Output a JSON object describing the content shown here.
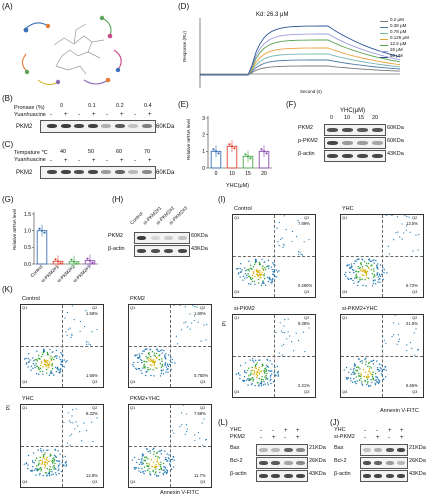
{
  "panels": {
    "A": "(A)",
    "B": "(B)",
    "C": "(C)",
    "D": "(D)",
    "E": "(E)",
    "F": "(F)",
    "G": "(G)",
    "H": "(H)",
    "I": "(I)",
    "J": "(J)",
    "K": "(K)",
    "L": "(L)"
  },
  "B": {
    "row1": "Pronase (%)",
    "row2": "Yuanhuacine",
    "pronase": [
      "0",
      "0.1",
      "0.2",
      "0.4"
    ],
    "signs": [
      "-",
      "+",
      "-",
      "+",
      "-",
      "+",
      "-",
      "+"
    ],
    "protein": "PKM2",
    "kda": "60KDa"
  },
  "C": {
    "row1": "Tempature ℃",
    "row2": "Yuanhuacine",
    "temps": [
      "40",
      "50",
      "60",
      "70"
    ],
    "signs": [
      "-",
      "+",
      "-",
      "+",
      "-",
      "+",
      "-",
      "+"
    ],
    "protein": "PKM2",
    "kda": "60KDa"
  },
  "D": {
    "kd": "Kd: 26.3 μM",
    "ylabel": "Response (RU)",
    "xlabel": "Second (s)",
    "legend": [
      "0.2 μM",
      "0.39 μM",
      "0.78 μM",
      "0.125 μM",
      "12.5 μM",
      "25 μM",
      "50 μM"
    ],
    "colors": [
      "#7a7a7a",
      "#4e79a7",
      "#76b7b2",
      "#e8a33d",
      "#59a14f",
      "#9c9ede",
      "#2f5597"
    ]
  },
  "E": {
    "ylabel": "Relative mRNA level",
    "xlabel": "YHC(μM)",
    "ticks": [
      "0",
      "10",
      "15",
      "20"
    ],
    "yticks": [
      "0",
      "1",
      "2",
      "3"
    ]
  },
  "F": {
    "header": "YHC(μM)",
    "conc": [
      "0",
      "10",
      "15",
      "20"
    ],
    "proteins": [
      "PKM2",
      "p-PKM2",
      "β-actin"
    ],
    "kda": [
      "60KDa",
      "60KDa",
      "43KDa"
    ]
  },
  "G": {
    "ylabel": "Relative mRNA level",
    "yticks": [
      "0.0",
      "0.5",
      "1.0",
      "1.5"
    ],
    "cats": [
      "Control",
      "si-PKM2#1",
      "si-PKM2#2",
      "si-PKM2#3"
    ]
  },
  "H": {
    "cols": [
      "Control",
      "si-PKM2#1",
      "si-PKM2#2",
      "si-PKM2#3"
    ],
    "proteins": [
      "PKM2",
      "β-actin"
    ],
    "kda": [
      "60KDa",
      "43KDa"
    ]
  },
  "I": {
    "titles": [
      "Control",
      "YHC",
      "si-PKM2",
      "si-PKM2+YHC"
    ],
    "pi": "PI",
    "annexin": "Annexin V-FITC",
    "q": [
      [
        "7.89%",
        "0.290%"
      ],
      [
        "13.5%",
        "5.72%"
      ],
      [
        "9.38%",
        "2.21%"
      ],
      [
        "21.8%",
        "6.66%"
      ]
    ]
  },
  "K": {
    "titles": [
      "Control",
      "PKM2",
      "YHC",
      "PKM2+YHC"
    ],
    "pi": "PI",
    "annexin": "Annexin V-FITC",
    "q": [
      [
        "1.59%",
        "1.65%"
      ],
      [
        "1.80%",
        "0.750%"
      ],
      [
        "8.32%",
        "12.8%"
      ],
      [
        "7.68%",
        "11.7%"
      ]
    ]
  },
  "L": {
    "rows": [
      "YHC",
      "PKM2"
    ],
    "signs": [
      [
        "-",
        "-",
        "+",
        "+"
      ],
      [
        "-",
        "+",
        "-",
        "+"
      ]
    ],
    "proteins": [
      "Bax",
      "Bcl-2",
      "β-actin"
    ],
    "kda": [
      "21KDa",
      "26KDa",
      "43KDa"
    ]
  },
  "J": {
    "rows": [
      "YHC",
      "si-PKM2"
    ],
    "signs": [
      [
        "-",
        "-",
        "+",
        "+"
      ],
      [
        "-",
        "+",
        "-",
        "+"
      ]
    ],
    "proteins": [
      "Bax",
      "Bcl-2",
      "β-actin"
    ],
    "kda": [
      "21KDa",
      "26KDa",
      "43KDa"
    ]
  },
  "chart_data": [
    {
      "type": "line",
      "title": "(D)",
      "xlabel": "Second (s)",
      "ylabel": "Response (RU)",
      "series": [
        {
          "name": "0.2 μM"
        },
        {
          "name": "0.39 μM"
        },
        {
          "name": "0.78 μM"
        },
        {
          "name": "0.125 μM"
        },
        {
          "name": "12.5 μM"
        },
        {
          "name": "25 μM"
        },
        {
          "name": "50 μM"
        }
      ]
    },
    {
      "type": "bar",
      "title": "(E)",
      "xlabel": "YHC(μM)",
      "ylabel": "Relative mRNA level",
      "categories": [
        "0",
        "10",
        "15",
        "20"
      ],
      "values": [
        1.0,
        1.3,
        0.7,
        1.0
      ],
      "ylim": [
        0,
        3
      ]
    },
    {
      "type": "bar",
      "title": "(G)",
      "ylabel": "Relative mRNA level",
      "categories": [
        "Control",
        "si-PKM2#1",
        "si-PKM2#2",
        "si-PKM2#3"
      ],
      "values": [
        1.0,
        0.08,
        0.07,
        0.1
      ],
      "ylim": [
        0,
        1.5
      ]
    }
  ]
}
